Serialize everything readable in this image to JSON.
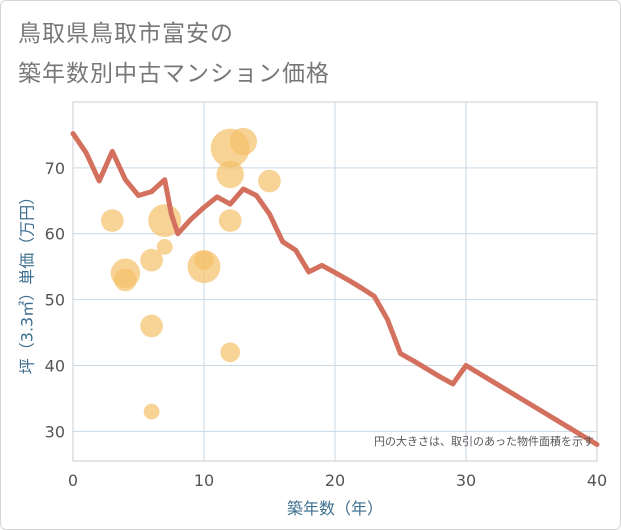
{
  "chart_title_lines": [
    "鳥取県鳥取市富安の",
    "築年数別中古マンション価格"
  ],
  "chart_data": {
    "type": "scatter",
    "title": "鳥取県鳥取市富安の築年数別中古マンション価格",
    "xlabel": "築年数（年）",
    "ylabel": "坪（3.3㎡）単価（万円）",
    "xlim": [
      0,
      40
    ],
    "ylim": [
      25.5,
      80
    ],
    "x_ticks": [
      0,
      10,
      20,
      30,
      40
    ],
    "y_ticks": [
      30,
      40,
      50,
      60,
      70
    ],
    "grid": true,
    "annotation": "円の大きさは、取引のあった物件面積を示す",
    "series": [
      {
        "type": "bubble",
        "color": "#f5c06a",
        "points": [
          {
            "x": 3,
            "y": 62,
            "size": 3
          },
          {
            "x": 4,
            "y": 54,
            "size": 6
          },
          {
            "x": 4,
            "y": 53,
            "size": 3
          },
          {
            "x": 6,
            "y": 56,
            "size": 3
          },
          {
            "x": 6,
            "y": 46,
            "size": 3
          },
          {
            "x": 6,
            "y": 33,
            "size": 1
          },
          {
            "x": 7,
            "y": 62,
            "size": 8
          },
          {
            "x": 7,
            "y": 58,
            "size": 1
          },
          {
            "x": 10,
            "y": 55,
            "size": 8
          },
          {
            "x": 10,
            "y": 56,
            "size": 2
          },
          {
            "x": 12,
            "y": 73,
            "size": 12
          },
          {
            "x": 12,
            "y": 69,
            "size": 5
          },
          {
            "x": 12,
            "y": 62,
            "size": 3
          },
          {
            "x": 12,
            "y": 42,
            "size": 2
          },
          {
            "x": 13,
            "y": 74,
            "size": 5
          },
          {
            "x": 15,
            "y": 68,
            "size": 3
          }
        ]
      },
      {
        "type": "line",
        "color": "#d4705e",
        "x": [
          0,
          1,
          2,
          3,
          4,
          5,
          6,
          7,
          7.5,
          8,
          9,
          10,
          11,
          12,
          13,
          14,
          15,
          16,
          17,
          18,
          19,
          20,
          21,
          22,
          23,
          24,
          25,
          26,
          27,
          28,
          29,
          30,
          31,
          32,
          33,
          34,
          35,
          36,
          37,
          38,
          39,
          40
        ],
        "y": [
          75.2,
          72.3,
          68,
          72.5,
          68.2,
          65.8,
          66.4,
          68.2,
          63,
          60,
          62.2,
          64,
          65.6,
          64.5,
          66.8,
          65.8,
          63,
          58.8,
          57.5,
          54.2,
          55.2,
          54.1,
          53,
          51.8,
          50.5,
          47,
          41.8,
          40.7,
          39.5,
          38.3,
          37.2,
          40,
          38.8,
          37.6,
          36.4,
          35.2,
          34,
          32.8,
          31.6,
          30.4,
          29.2,
          28
        ]
      }
    ]
  }
}
